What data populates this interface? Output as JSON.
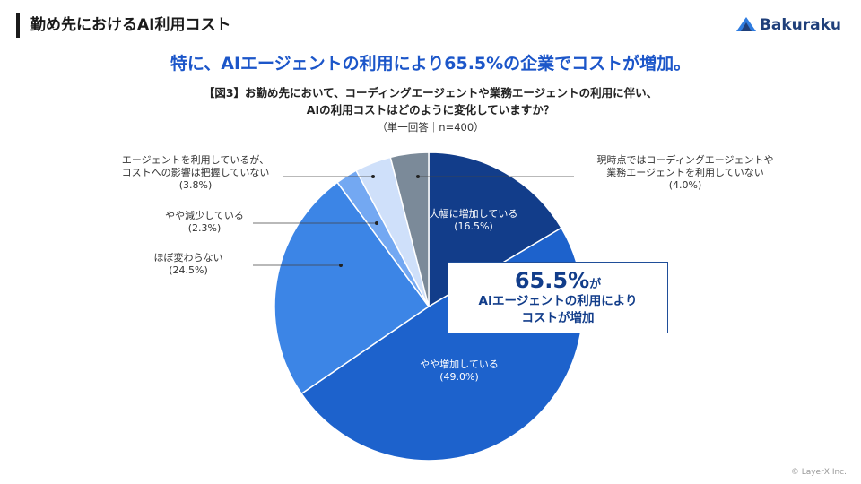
{
  "header": {
    "title": "勤め先におけるAI利用コスト",
    "logo_text": "Bakuraku"
  },
  "headline": "特に、AIエージェントの利用により65.5%の企業でコストが増加。",
  "question": {
    "line1": "【図3】お勤め先において、コーディングエージェントや業務エージェントの利用に伴い、",
    "line2": "AIの利用コストはどのように変化していますか？",
    "basis": "（単一回答｜n=400）"
  },
  "callout": {
    "percent": "65.5%",
    "suffix": "が",
    "line1": "AIエージェントの利用により",
    "line2": "コストが増加"
  },
  "copyright": "© LayerX Inc.",
  "colors": {
    "title_blue": "#1c56c9",
    "callout_border": "#1f4e99",
    "logo": "#1f3f7a"
  },
  "chart_data": {
    "type": "pie",
    "start": "12 o'clock, clockwise",
    "slices": [
      {
        "label": "大幅に増加している",
        "value_label": "(16.5%)",
        "value": 16.5,
        "color": "#123d8a",
        "label_position": "inside"
      },
      {
        "label": "やや増加している",
        "value_label": "(49.0%)",
        "value": 49.0,
        "color": "#1d62cc",
        "label_position": "inside"
      },
      {
        "label": "ほぼ変わらない",
        "value_label": "(24.5%)",
        "value": 24.5,
        "color": "#3c85e6",
        "label_position": "outside-left"
      },
      {
        "label": "やや減少している",
        "value_label": "(2.3%)",
        "value": 2.3,
        "color": "#73a8f2",
        "label_position": "outside-left"
      },
      {
        "label": "エージェントを利用しているが、\nコストへの影響は把握していない",
        "value_label": "(3.8%)",
        "value": 3.8,
        "color": "#cfe0fa",
        "label_position": "outside-left"
      },
      {
        "label": "現時点ではコーディングエージェントや\n業務エージェントを利用していない",
        "value_label": "(4.0%)",
        "value": 4.0,
        "color": "#7b8a99",
        "label_position": "outside-right"
      }
    ]
  }
}
